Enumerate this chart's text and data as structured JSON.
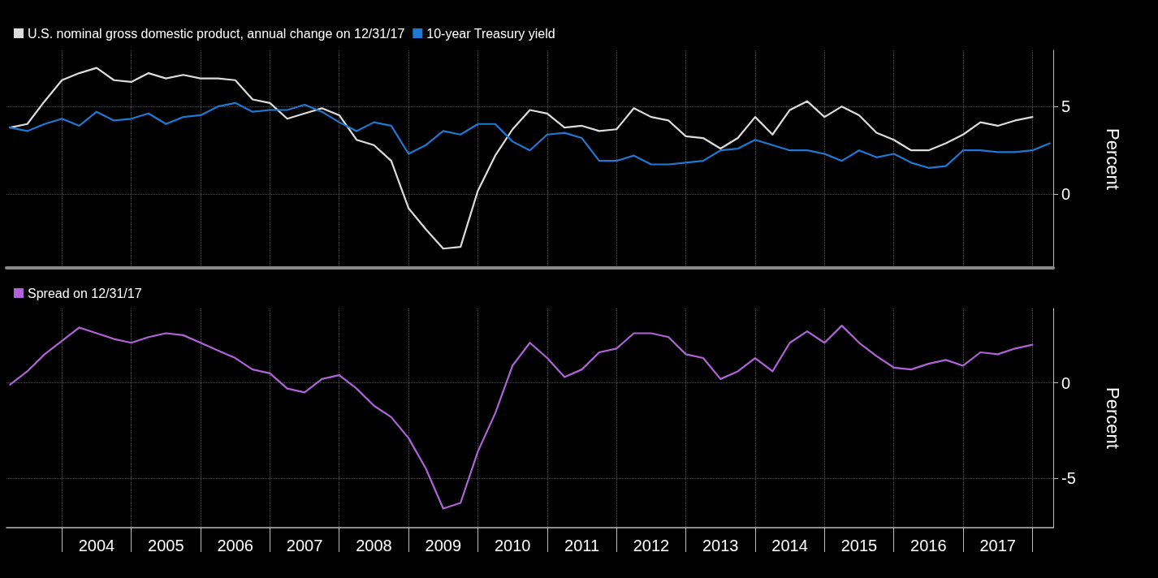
{
  "chart_data": [
    {
      "type": "line",
      "ylabel": "Percent",
      "legend": "top left",
      "grid": true,
      "marker": "none",
      "tick_labels": "y",
      "x": [
        2003.25,
        2003.5,
        2003.75,
        2004,
        2004.25,
        2004.5,
        2004.75,
        2005,
        2005.25,
        2005.5,
        2005.75,
        2006,
        2006.25,
        2006.5,
        2006.75,
        2007,
        2007.25,
        2007.5,
        2007.75,
        2008,
        2008.25,
        2008.5,
        2008.75,
        2009,
        2009.25,
        2009.5,
        2009.75,
        2010,
        2010.25,
        2010.5,
        2010.75,
        2011,
        2011.25,
        2011.5,
        2011.75,
        2012,
        2012.25,
        2012.5,
        2012.75,
        2013,
        2013.25,
        2013.5,
        2013.75,
        2014,
        2014.25,
        2014.5,
        2014.75,
        2015,
        2015.25,
        2015.5,
        2015.75,
        2016,
        2016.25,
        2016.5,
        2016.75,
        2017,
        2017.25,
        2017.5,
        2017.75,
        2018
      ],
      "xlim": [
        2003.2,
        2018.3
      ],
      "xticks": [
        {
          "value": 2004,
          "label": null
        },
        {
          "value": 2005,
          "label": null
        },
        {
          "value": 2006,
          "label": null
        },
        {
          "value": 2007,
          "label": null
        },
        {
          "value": 2008,
          "label": null
        },
        {
          "value": 2009,
          "label": null
        },
        {
          "value": 2010,
          "label": null
        },
        {
          "value": 2011,
          "label": null
        },
        {
          "value": 2012,
          "label": null
        },
        {
          "value": 2013,
          "label": null
        },
        {
          "value": 2014,
          "label": null
        },
        {
          "value": 2015,
          "label": null
        },
        {
          "value": 2016,
          "label": null
        },
        {
          "value": 2017,
          "label": null
        },
        {
          "value": 2018,
          "label": null
        }
      ],
      "ylim": [
        -4.2,
        8.2
      ],
      "yticks": [
        0,
        5
      ],
      "series": [
        {
          "name": "U.S. nominal gross domestic product, annual change on 12/31/17",
          "color": "#dcdcdc",
          "values": [
            3.8,
            4.0,
            5.3,
            6.5,
            6.9,
            7.2,
            6.5,
            6.4,
            6.9,
            6.6,
            6.8,
            6.6,
            6.6,
            6.5,
            5.4,
            5.2,
            4.3,
            4.6,
            4.9,
            4.5,
            3.1,
            2.8,
            1.9,
            -0.8,
            -2.0,
            -3.1,
            -3.0,
            0.2,
            2.2,
            3.7,
            4.8,
            4.6,
            3.8,
            3.9,
            3.6,
            3.7,
            4.9,
            4.4,
            4.2,
            3.3,
            3.2,
            2.6,
            3.2,
            4.4,
            3.4,
            4.8,
            5.3,
            4.4,
            5.0,
            4.5,
            3.5,
            3.1,
            2.5,
            2.5,
            2.9,
            3.4,
            4.1,
            3.9,
            4.2,
            4.4
          ]
        },
        {
          "name": "10-year Treasury yield",
          "color": "#1f78d1",
          "x": [
            2003.25,
            2003.5,
            2003.75,
            2004,
            2004.25,
            2004.5,
            2004.75,
            2005,
            2005.25,
            2005.5,
            2005.75,
            2006,
            2006.25,
            2006.5,
            2006.75,
            2007,
            2007.25,
            2007.5,
            2007.75,
            2008,
            2008.25,
            2008.5,
            2008.75,
            2009,
            2009.25,
            2009.5,
            2009.75,
            2010,
            2010.25,
            2010.5,
            2010.75,
            2011,
            2011.25,
            2011.5,
            2011.75,
            2012,
            2012.25,
            2012.5,
            2012.75,
            2013,
            2013.25,
            2013.5,
            2013.75,
            2014,
            2014.25,
            2014.5,
            2014.75,
            2015,
            2015.25,
            2015.5,
            2015.75,
            2016,
            2016.25,
            2016.5,
            2016.75,
            2017,
            2017.25,
            2017.5,
            2017.75,
            2018,
            2018.25
          ],
          "values": [
            3.8,
            3.6,
            4.0,
            4.3,
            3.9,
            4.7,
            4.2,
            4.3,
            4.6,
            4.0,
            4.4,
            4.5,
            5.0,
            5.2,
            4.7,
            4.8,
            4.8,
            5.1,
            4.7,
            4.1,
            3.6,
            4.1,
            3.9,
            2.3,
            2.8,
            3.6,
            3.4,
            4.0,
            4.0,
            3.0,
            2.5,
            3.4,
            3.5,
            3.2,
            1.9,
            1.9,
            2.2,
            1.7,
            1.7,
            1.8,
            1.9,
            2.5,
            2.6,
            3.1,
            2.8,
            2.5,
            2.5,
            2.3,
            1.9,
            2.5,
            2.1,
            2.3,
            1.8,
            1.5,
            1.6,
            2.5,
            2.5,
            2.4,
            2.4,
            2.5,
            2.9
          ]
        }
      ]
    },
    {
      "type": "line",
      "ylabel": "Percent",
      "legend": "top left",
      "grid": true,
      "marker": "none",
      "x": [
        2003.25,
        2003.5,
        2003.75,
        2004,
        2004.25,
        2004.5,
        2004.75,
        2005,
        2005.25,
        2005.5,
        2005.75,
        2006,
        2006.25,
        2006.5,
        2006.75,
        2007,
        2007.25,
        2007.5,
        2007.75,
        2008,
        2008.25,
        2008.5,
        2008.75,
        2009,
        2009.25,
        2009.5,
        2009.75,
        2010,
        2010.25,
        2010.5,
        2010.75,
        2011,
        2011.25,
        2011.5,
        2011.75,
        2012,
        2012.25,
        2012.5,
        2012.75,
        2013,
        2013.25,
        2013.5,
        2013.75,
        2014,
        2014.25,
        2014.5,
        2014.75,
        2015,
        2015.25,
        2015.5,
        2015.75,
        2016,
        2016.25,
        2016.5,
        2016.75,
        2017,
        2017.25,
        2017.5,
        2017.75,
        2018
      ],
      "xlim": [
        2003.2,
        2018.3
      ],
      "xticks": [
        {
          "value": 2004,
          "label": null
        },
        {
          "value": 2004.5,
          "label": "2004"
        },
        {
          "value": 2005,
          "label": null
        },
        {
          "value": 2005.5,
          "label": "2005"
        },
        {
          "value": 2006,
          "label": null
        },
        {
          "value": 2006.5,
          "label": "2006"
        },
        {
          "value": 2007,
          "label": null
        },
        {
          "value": 2007.5,
          "label": "2007"
        },
        {
          "value": 2008,
          "label": null
        },
        {
          "value": 2008.5,
          "label": "2008"
        },
        {
          "value": 2009,
          "label": null
        },
        {
          "value": 2009.5,
          "label": "2009"
        },
        {
          "value": 2010,
          "label": null
        },
        {
          "value": 2010.5,
          "label": "2010"
        },
        {
          "value": 2011,
          "label": null
        },
        {
          "value": 2011.5,
          "label": "2011"
        },
        {
          "value": 2012,
          "label": null
        },
        {
          "value": 2012.5,
          "label": "2012"
        },
        {
          "value": 2013,
          "label": null
        },
        {
          "value": 2013.5,
          "label": "2013"
        },
        {
          "value": 2014,
          "label": null
        },
        {
          "value": 2014.5,
          "label": "2014"
        },
        {
          "value": 2015,
          "label": null
        },
        {
          "value": 2015.5,
          "label": "2015"
        },
        {
          "value": 2016,
          "label": null
        },
        {
          "value": 2016.5,
          "label": "2016"
        },
        {
          "value": 2017,
          "label": null
        },
        {
          "value": 2017.5,
          "label": "2017"
        },
        {
          "value": 2018,
          "label": null
        }
      ],
      "ylim": [
        -7.6,
        3.9
      ],
      "yticks": [
        0,
        -5
      ],
      "series": [
        {
          "name": "Spread on 12/31/17",
          "color": "#b063d8",
          "values": [
            -0.1,
            0.6,
            1.5,
            2.2,
            2.9,
            2.6,
            2.3,
            2.1,
            2.4,
            2.6,
            2.5,
            2.1,
            1.7,
            1.3,
            0.7,
            0.5,
            -0.3,
            -0.5,
            0.2,
            0.4,
            -0.3,
            -1.2,
            -1.8,
            -2.9,
            -4.5,
            -6.6,
            -6.3,
            -3.6,
            -1.6,
            0.9,
            2.1,
            1.3,
            0.3,
            0.7,
            1.6,
            1.8,
            2.6,
            2.6,
            2.4,
            1.5,
            1.3,
            0.2,
            0.6,
            1.3,
            0.6,
            2.1,
            2.7,
            2.1,
            3.0,
            2.1,
            1.4,
            0.8,
            0.7,
            1.0,
            1.2,
            0.9,
            1.6,
            1.5,
            1.8,
            2.0
          ]
        }
      ]
    }
  ]
}
